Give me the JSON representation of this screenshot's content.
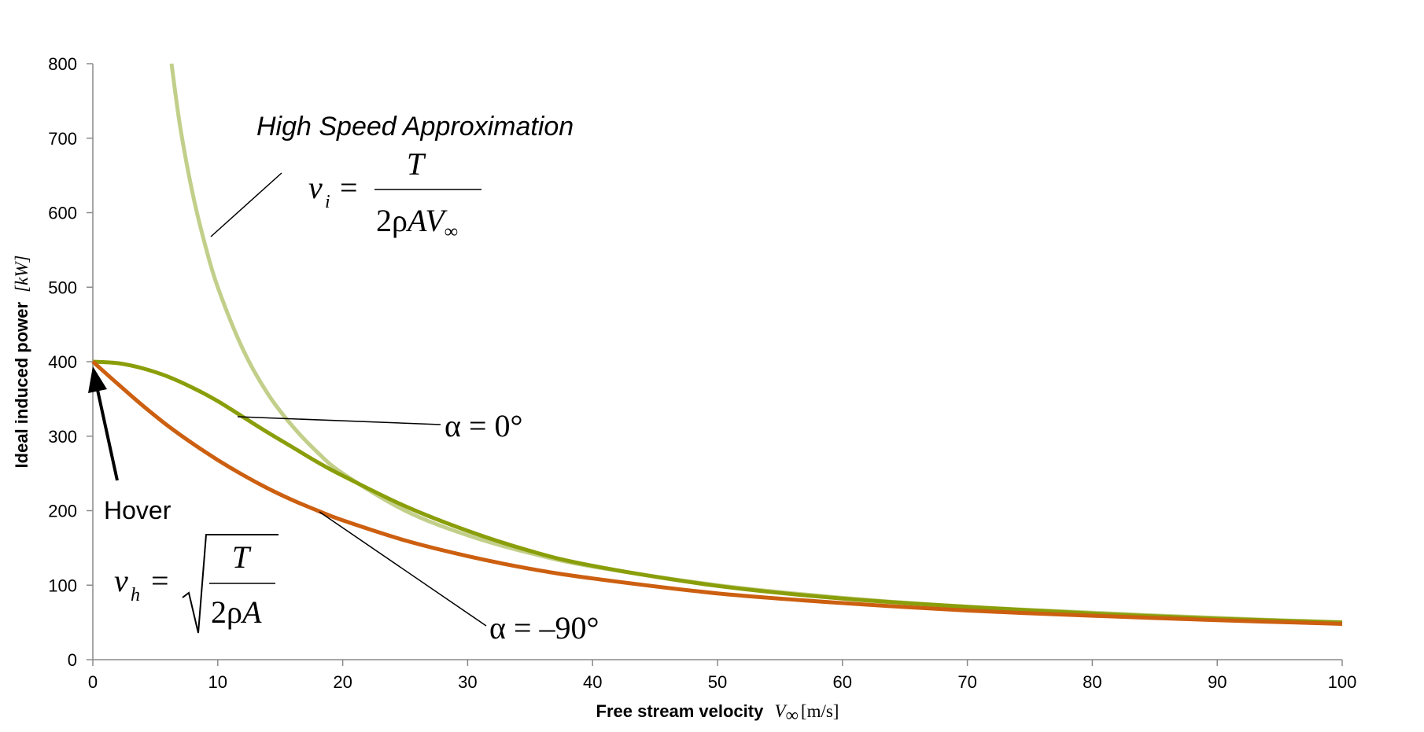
{
  "chart_data": {
    "type": "line",
    "title": "",
    "xlabel": "Free stream velocity",
    "xlabel_symbol": "V",
    "xlabel_symbol_sub": "∞",
    "xlabel_unit": "[m/s]",
    "ylabel": "Ideal induced power",
    "ylabel_unit": "[kW]",
    "xlim": [
      0,
      100
    ],
    "ylim": [
      0,
      800
    ],
    "x_ticks": [
      "0",
      "10",
      "20",
      "30",
      "40",
      "50",
      "60",
      "70",
      "80",
      "90",
      "100"
    ],
    "y_ticks": [
      "0",
      "100",
      "200",
      "300",
      "400",
      "500",
      "600",
      "700",
      "800"
    ],
    "grid": false,
    "legend": "none",
    "series": [
      {
        "color": "#c2cf8a",
        "x": [
          6.3,
          7,
          8,
          9,
          10,
          12,
          14,
          16,
          18,
          20,
          25,
          30,
          35,
          40,
          50,
          60,
          70,
          80,
          90,
          100
        ],
        "y": [
          800,
          714,
          625,
          556,
          500,
          417,
          357,
          313,
          278,
          250,
          200,
          167,
          143,
          125,
          100,
          83,
          71,
          63,
          56,
          50
        ]
      },
      {
        "color": "#8a9e0a",
        "x": [
          0,
          2,
          4,
          6,
          8,
          10,
          12,
          14,
          16,
          18,
          20,
          25,
          30,
          35,
          40,
          50,
          60,
          70,
          80,
          90,
          100
        ],
        "y": [
          400,
          398,
          391,
          380,
          365,
          347,
          326,
          305,
          285,
          265,
          247,
          206,
          173,
          146,
          126,
          99,
          82,
          71,
          62,
          55,
          50
        ]
      },
      {
        "color": "#cc5f10",
        "x": [
          0,
          2,
          4,
          6,
          8,
          10,
          12,
          14,
          16,
          18,
          20,
          25,
          30,
          35,
          40,
          50,
          60,
          70,
          80,
          90,
          100
        ],
        "y": [
          400,
          370,
          341,
          314,
          290,
          268,
          248,
          230,
          214,
          200,
          187,
          160,
          139,
          122,
          109,
          89,
          76,
          66,
          59,
          53,
          48
        ]
      }
    ],
    "annotations": {
      "high_speed": "High Speed Approximation",
      "alpha_zero": "α = 0°",
      "alpha_neg90": "α = –90°",
      "hover": "Hover",
      "vi_lhs": "v",
      "vi_sub": "i",
      "vi_num": "T",
      "vi_den_a": "2ρ",
      "vi_den_b": "AV",
      "vi_den_sub": "∞",
      "vh_lhs": "v",
      "vh_sub": "h",
      "vh_num": "T",
      "vh_den_a": "2ρ",
      "vh_den_b": "A",
      "eq": "="
    }
  }
}
